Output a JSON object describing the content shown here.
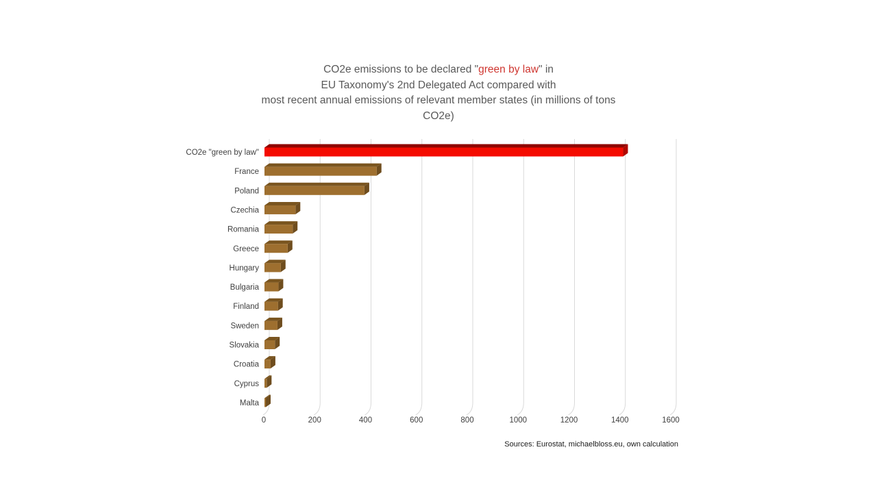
{
  "title": {
    "line1_pre": "CO2e emissions to be declared \"",
    "line1_highlight": "green by law",
    "line1_post": "\" in",
    "line2": "EU Taxonomy's 2nd Delegated Act compared with",
    "line3": "most recent annual emissions of relevant member states (in millions of tons",
    "line4": "CO2e)"
  },
  "source_note": "Sources: Eurostat, michaelbloss.eu, own calculation",
  "chart_data": {
    "type": "bar",
    "orientation": "horizontal",
    "style": "3d-beveled",
    "title": "CO2e emissions to be declared \"green by law\" in EU Taxonomy's 2nd Delegated Act compared with most recent annual emissions of relevant member states (in millions of tons CO2e)",
    "categories": [
      "CO2e \"green by law\"",
      "France",
      "Poland",
      "Czechia",
      "Romania",
      "Greece",
      "Hungary",
      "Bulgaria",
      "Finland",
      "Sweden",
      "Slovakia",
      "Croatia",
      "Cyprus",
      "Malta"
    ],
    "values": [
      1410,
      441,
      393,
      122,
      111,
      91,
      64,
      55,
      53,
      51,
      41,
      24,
      9,
      3
    ],
    "unit": "millions of tons CO2e",
    "xlim": [
      0,
      1600
    ],
    "xticks": [
      0,
      200,
      400,
      600,
      800,
      1000,
      1200,
      1400,
      1600
    ],
    "grid": true,
    "legend": "none",
    "highlight_index": 0
  },
  "colors": {
    "background": "#ffffff",
    "title_text": "#595959",
    "title_highlight": "#cf3630",
    "axis_text": "#404040",
    "gridline": "#d9d9d9",
    "bar_front": "#9e6f2f",
    "bar_top": "#7a551f",
    "bar_side": "#6f4d1e",
    "highlight_front": "#f40b00",
    "highlight_top": "#8f0500",
    "highlight_side": "#b00800",
    "source_text": "#1a1a1a"
  }
}
